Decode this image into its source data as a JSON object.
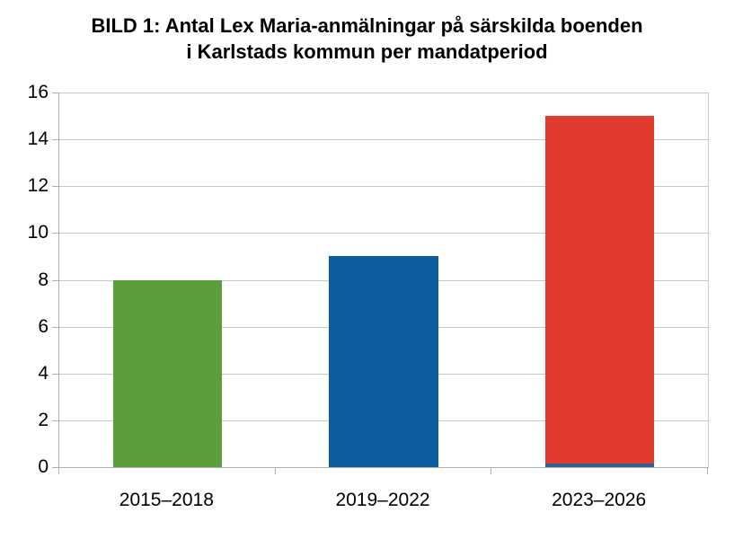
{
  "title": {
    "line1": "BILD 1: Antal Lex Maria-anmälningar på särskilda boenden",
    "line2": "i Karlstads kommun per mandatperiod"
  },
  "chart_data": {
    "type": "bar",
    "title": "BILD 1: Antal Lex Maria-anmälningar på särskilda boenden i Karlstads kommun per mandatperiod",
    "categories": [
      "2015–2018",
      "2019–2022",
      "2023–2026"
    ],
    "values": [
      8,
      9,
      15
    ],
    "bar_colors": [
      "#5b9e3c",
      "#0c5c9e",
      "#e03b2c"
    ],
    "base_strip_colors": [
      null,
      null,
      "#33618f"
    ],
    "xlabel": "",
    "ylabel": "",
    "ylim": [
      0,
      16
    ],
    "yticks": [
      0,
      2,
      4,
      6,
      8,
      10,
      12,
      14,
      16
    ],
    "grid": "horizontal",
    "legend": "none",
    "gridline_color": "#c9c9c9",
    "axis_color": "#b0b0b0",
    "text_color": "#000000",
    "background_color": "#ffffff"
  }
}
